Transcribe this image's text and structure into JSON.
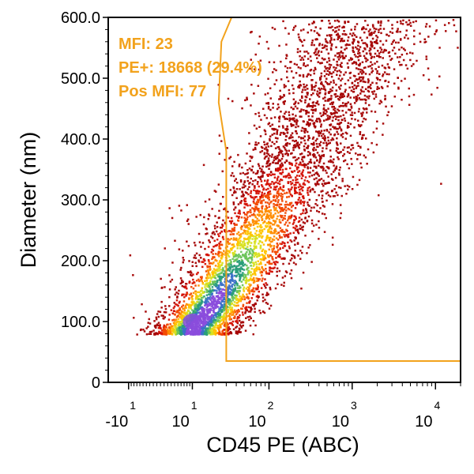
{
  "colors": {
    "gate": "#f2a21c",
    "stats_text": "#f2a21c",
    "density_scale": [
      "#a40000",
      "#d40e00",
      "#f24800",
      "#ff8c00",
      "#ffc400",
      "#d8e020",
      "#6cc45a",
      "#2a9e7a",
      "#3a70c8",
      "#8a4cdc"
    ]
  },
  "stats": {
    "mfi": "MFI: 23",
    "pe_pos": "PE+: 18668 (29.4%)",
    "pos_mfi": "Pos MFI: 77"
  },
  "chart_data": {
    "type": "scatter",
    "subtype": "density plot (flow cytometry)",
    "xlabel": "CD45 PE (ABC)",
    "ylabel": "Diameter (nm)",
    "x_scale": "biexponential",
    "xlim": [
      -20,
      20000
    ],
    "ylim": [
      0,
      600
    ],
    "y_ticks": [
      "0",
      "100.0",
      "200.0",
      "300.0",
      "400.0",
      "500.0",
      "600.0"
    ],
    "x_ticks": [
      {
        "base": "-10",
        "exp": "1"
      },
      {
        "base": "10",
        "exp": "1"
      },
      {
        "base": "10",
        "exp": "2"
      },
      {
        "base": "10",
        "exp": "3"
      },
      {
        "base": "10",
        "exp": "4"
      }
    ],
    "gate_threshold_x": 30,
    "gate_region": "right of vertical threshold, diameter above 35",
    "density_peak": {
      "x": 10,
      "y": 100
    },
    "population_trend": "diameter increases with PE intensity, events spanning roughly 80 to 600 nm"
  }
}
